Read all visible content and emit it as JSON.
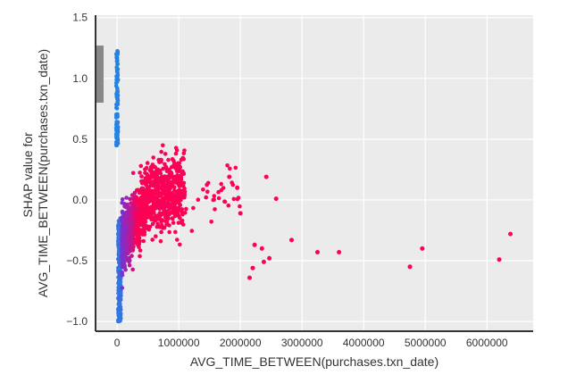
{
  "chart_data": {
    "type": "scatter",
    "title": "",
    "xlabel": "AVG_TIME_BETWEEN(purchases.txn_date)",
    "ylabel_lines": [
      "SHAP value for",
      "AVG_TIME_BETWEEN(purchases.txn_date)"
    ],
    "xlim": [
      -350000,
      6750000
    ],
    "ylim": [
      -1.08,
      1.52
    ],
    "x_ticks": [
      0,
      1000000,
      2000000,
      3000000,
      4000000,
      5000000,
      6000000
    ],
    "x_tick_labels": [
      "0",
      "1000000",
      "2000000",
      "3000000",
      "4000000",
      "5000000",
      "6000000"
    ],
    "y_ticks": [
      -1.0,
      -0.5,
      0.0,
      0.5,
      1.0,
      1.5
    ],
    "y_tick_labels": [
      "−1.0",
      "−0.5",
      "0.0",
      "0.5",
      "1.0",
      "1.5"
    ],
    "grid": true,
    "colormap": {
      "low": "#1e88e5",
      "mid": "#7c2fd0",
      "high": "#ff0052"
    },
    "feature_range_bar": {
      "y_min": 0.8,
      "y_max": 1.27,
      "color": "#888888"
    },
    "clusters": {
      "zero_column": {
        "x": 0,
        "x_jitter": 30000,
        "y_min": 0.45,
        "y_max": 1.23,
        "count": 120,
        "color_value": 0.0
      },
      "near_zero_column": {
        "x": 30000,
        "x_jitter": 45000,
        "y_min": -1.0,
        "y_max": -0.15,
        "count": 260,
        "color_value": 0.05
      },
      "dense_fan": {
        "x_min": 80000,
        "x_max": 1100000,
        "count": 1300
      },
      "mid_range": {
        "x_min": 1000000,
        "x_max": 2000000,
        "count": 35
      }
    },
    "outlier_points": [
      {
        "x": 2150000,
        "y": -0.64
      },
      {
        "x": 2200000,
        "y": -0.56
      },
      {
        "x": 2230000,
        "y": -0.37
      },
      {
        "x": 2350000,
        "y": -0.4
      },
      {
        "x": 2380000,
        "y": -0.51
      },
      {
        "x": 2420000,
        "y": 0.19
      },
      {
        "x": 2470000,
        "y": -0.48
      },
      {
        "x": 2580000,
        "y": 0.01
      },
      {
        "x": 2830000,
        "y": -0.33
      },
      {
        "x": 3250000,
        "y": -0.43
      },
      {
        "x": 3600000,
        "y": -0.43
      },
      {
        "x": 4750000,
        "y": -0.55
      },
      {
        "x": 4950000,
        "y": -0.4
      },
      {
        "x": 6200000,
        "y": -0.49
      },
      {
        "x": 6380000,
        "y": -0.28
      },
      {
        "x": 1950000,
        "y": 0.1
      },
      {
        "x": 1820000,
        "y": 0.19
      },
      {
        "x": 2000000,
        "y": -0.11
      }
    ]
  }
}
